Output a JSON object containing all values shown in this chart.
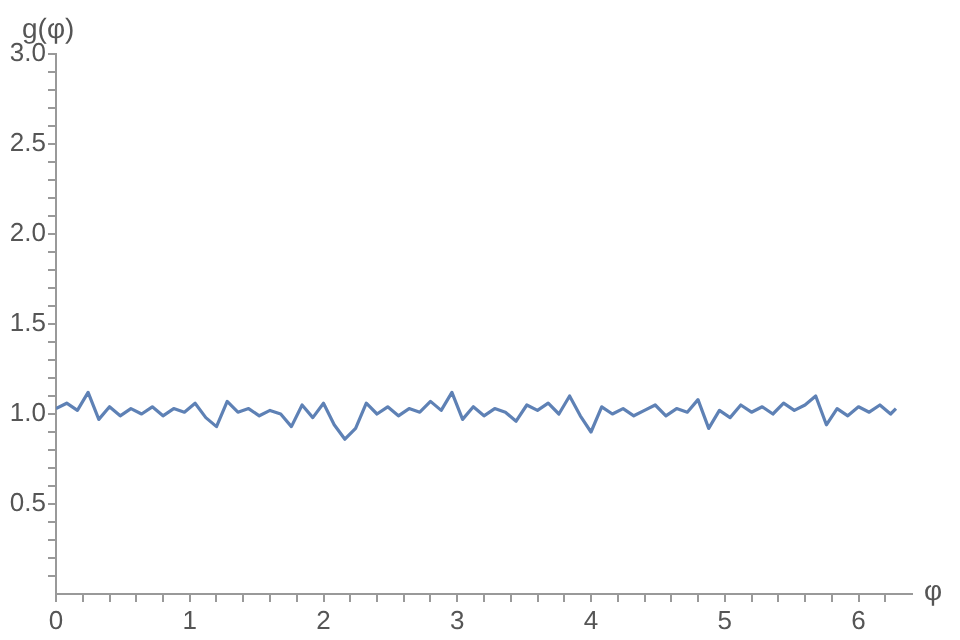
{
  "chart_data": {
    "type": "line",
    "xlabel": "φ",
    "ylabel": "g(φ)",
    "x": [
      0,
      0.08,
      0.16,
      0.24,
      0.32,
      0.4,
      0.48,
      0.56,
      0.64,
      0.72,
      0.8,
      0.88,
      0.96,
      1.04,
      1.12,
      1.2,
      1.28,
      1.36,
      1.44,
      1.52,
      1.6,
      1.68,
      1.76,
      1.84,
      1.92,
      2.0,
      2.08,
      2.16,
      2.24,
      2.32,
      2.4,
      2.48,
      2.56,
      2.64,
      2.72,
      2.8,
      2.88,
      2.96,
      3.04,
      3.12,
      3.2,
      3.28,
      3.36,
      3.44,
      3.52,
      3.6,
      3.68,
      3.76,
      3.84,
      3.92,
      4.0,
      4.08,
      4.16,
      4.24,
      4.32,
      4.4,
      4.48,
      4.56,
      4.64,
      4.72,
      4.8,
      4.88,
      4.96,
      5.04,
      5.12,
      5.2,
      5.28,
      5.36,
      5.44,
      5.52,
      5.6,
      5.68,
      5.76,
      5.84,
      5.92,
      6.0,
      6.08,
      6.16,
      6.24,
      6.28
    ],
    "series": [
      {
        "color": "#5e81b5",
        "values": [
          1.03,
          1.06,
          1.02,
          1.12,
          0.97,
          1.04,
          0.99,
          1.03,
          1.0,
          1.04,
          0.99,
          1.03,
          1.01,
          1.06,
          0.98,
          0.93,
          1.07,
          1.01,
          1.03,
          0.99,
          1.02,
          1.0,
          0.93,
          1.05,
          0.98,
          1.06,
          0.94,
          0.86,
          0.92,
          1.06,
          1.0,
          1.04,
          0.99,
          1.03,
          1.01,
          1.07,
          1.02,
          1.12,
          0.97,
          1.04,
          0.99,
          1.03,
          1.01,
          0.96,
          1.05,
          1.02,
          1.06,
          1.0,
          1.1,
          0.99,
          0.9,
          1.04,
          1.0,
          1.03,
          0.99,
          1.02,
          1.05,
          0.99,
          1.03,
          1.01,
          1.08,
          0.92,
          1.02,
          0.98,
          1.05,
          1.01,
          1.04,
          1.0,
          1.06,
          1.02,
          1.05,
          1.1,
          0.94,
          1.03,
          0.99,
          1.04,
          1.01,
          1.05,
          1.0,
          1.03
        ]
      }
    ],
    "xlim": [
      0,
      6.4
    ],
    "ylim": [
      0,
      3
    ],
    "xticks": [
      0,
      {
        "value": 0.2,
        "label": null
      },
      {
        "value": 0.4,
        "label": null
      },
      {
        "value": 0.6,
        "label": null
      },
      {
        "value": 0.8,
        "label": null
      },
      1,
      {
        "value": 1.2,
        "label": null
      },
      {
        "value": 1.4,
        "label": null
      },
      {
        "value": 1.6,
        "label": null
      },
      {
        "value": 1.8,
        "label": null
      },
      2,
      {
        "value": 2.2,
        "label": null
      },
      {
        "value": 2.4,
        "label": null
      },
      {
        "value": 2.6,
        "label": null
      },
      {
        "value": 2.8,
        "label": null
      },
      3,
      {
        "value": 3.2,
        "label": null
      },
      {
        "value": 3.4,
        "label": null
      },
      {
        "value": 3.6,
        "label": null
      },
      {
        "value": 3.8,
        "label": null
      },
      4,
      {
        "value": 4.2,
        "label": null
      },
      {
        "value": 4.4,
        "label": null
      },
      {
        "value": 4.6,
        "label": null
      },
      {
        "value": 4.8,
        "label": null
      },
      5,
      {
        "value": 5.2,
        "label": null
      },
      {
        "value": 5.4,
        "label": null
      },
      {
        "value": 5.6,
        "label": null
      },
      {
        "value": 5.8,
        "label": null
      },
      6,
      {
        "value": 6.2,
        "label": null
      }
    ],
    "yticks": [
      {
        "value": 0.1,
        "label": null
      },
      {
        "value": 0.2,
        "label": null
      },
      {
        "value": 0.3,
        "label": null
      },
      {
        "value": 0.4,
        "label": null
      },
      0.5,
      {
        "value": 0.6,
        "label": null
      },
      {
        "value": 0.7,
        "label": null
      },
      {
        "value": 0.8,
        "label": null
      },
      {
        "value": 0.9,
        "label": null
      },
      {
        "value": 1,
        "label": "1.0"
      },
      {
        "value": 1.1,
        "label": null
      },
      {
        "value": 1.2,
        "label": null
      },
      {
        "value": 1.3,
        "label": null
      },
      {
        "value": 1.4,
        "label": null
      },
      1.5,
      {
        "value": 1.6,
        "label": null
      },
      {
        "value": 1.7,
        "label": null
      },
      {
        "value": 1.8,
        "label": null
      },
      {
        "value": 1.9,
        "label": null
      },
      {
        "value": 2,
        "label": "2.0"
      },
      {
        "value": 2.1,
        "label": null
      },
      {
        "value": 2.2,
        "label": null
      },
      {
        "value": 2.3,
        "label": null
      },
      {
        "value": 2.4,
        "label": null
      },
      2.5,
      {
        "value": 2.6,
        "label": null
      },
      {
        "value": 2.7,
        "label": null
      },
      {
        "value": 2.8,
        "label": null
      },
      {
        "value": 2.9,
        "label": null
      },
      {
        "value": 3,
        "label": "3.0"
      }
    ],
    "grid": false,
    "legend": false,
    "marker": "none",
    "line_style": "solid"
  }
}
